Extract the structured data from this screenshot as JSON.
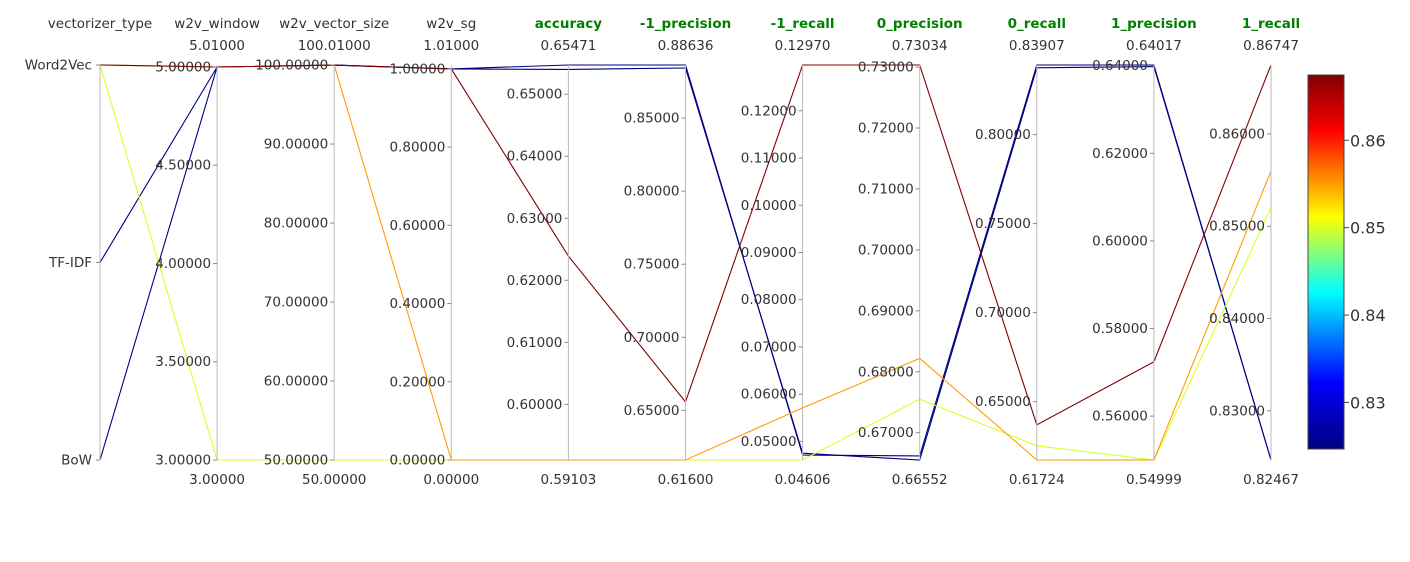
{
  "chart_data": {
    "type": "parallel_coordinates",
    "axes": [
      {
        "name": "vectorizer_type",
        "highlight": false,
        "categorical": true,
        "categories": [
          "Word2Vec",
          "TF-IDF",
          "BoW"
        ],
        "range_top": "",
        "range_bottom": ""
      },
      {
        "name": "w2v_window",
        "highlight": false,
        "range": [
          3.0,
          5.01
        ],
        "ticks": [
          "5.00000",
          "4.50000",
          "4.00000",
          "3.50000",
          "3.00000"
        ],
        "range_top": "5.01000",
        "range_bottom": "3.00000"
      },
      {
        "name": "w2v_vector_size",
        "highlight": false,
        "range": [
          50.0,
          100.01
        ],
        "ticks": [
          "100.00000",
          "90.00000",
          "80.00000",
          "70.00000",
          "60.00000",
          "50.00000"
        ],
        "range_top": "100.01000",
        "range_bottom": "50.00000"
      },
      {
        "name": "w2v_sg",
        "highlight": false,
        "range": [
          0.0,
          1.01
        ],
        "ticks": [
          "1.00000",
          "0.80000",
          "0.60000",
          "0.40000",
          "0.20000",
          "0.00000"
        ],
        "range_top": "1.01000",
        "range_bottom": "0.00000"
      },
      {
        "name": "accuracy",
        "highlight": true,
        "range": [
          0.59103,
          0.65471
        ],
        "ticks": [
          "0.65000",
          "0.64000",
          "0.63000",
          "0.62000",
          "0.61000",
          "0.60000"
        ],
        "range_top": "0.65471",
        "range_bottom": "0.59103"
      },
      {
        "name": "-1_precision",
        "highlight": true,
        "range": [
          0.616,
          0.88636
        ],
        "ticks": [
          "0.85000",
          "0.80000",
          "0.75000",
          "0.70000",
          "0.65000"
        ],
        "range_top": "0.88636",
        "range_bottom": "0.61600"
      },
      {
        "name": "-1_recall",
        "highlight": true,
        "range": [
          0.04606,
          0.1297
        ],
        "ticks": [
          "0.12000",
          "0.11000",
          "0.10000",
          "0.09000",
          "0.08000",
          "0.07000",
          "0.06000",
          "0.05000"
        ],
        "range_top": "0.12970",
        "range_bottom": "0.04606"
      },
      {
        "name": "0_precision",
        "highlight": true,
        "range": [
          0.66552,
          0.73034
        ],
        "ticks": [
          "0.73000",
          "0.72000",
          "0.71000",
          "0.70000",
          "0.69000",
          "0.68000",
          "0.67000"
        ],
        "range_top": "0.73034",
        "range_bottom": "0.66552"
      },
      {
        "name": "0_recall",
        "highlight": true,
        "range": [
          0.61724,
          0.83907
        ],
        "ticks": [
          "0.80000",
          "0.75000",
          "0.70000",
          "0.65000"
        ],
        "range_top": "0.83907",
        "range_bottom": "0.61724"
      },
      {
        "name": "1_precision",
        "highlight": true,
        "range": [
          0.54999,
          0.64017
        ],
        "ticks": [
          "0.64000",
          "0.62000",
          "0.60000",
          "0.58000",
          "0.56000"
        ],
        "range_top": "0.64017",
        "range_bottom": "0.54999"
      },
      {
        "name": "1_recall",
        "highlight": true,
        "range": [
          0.82467,
          0.86747
        ],
        "ticks": [
          "0.86000",
          "0.85000",
          "0.84000",
          "0.83000"
        ],
        "range_top": "0.86747",
        "range_bottom": "0.82467"
      }
    ],
    "series": [
      {
        "color_value": 0.86747,
        "values": [
          0,
          5.0,
          100.0,
          1.0,
          0.6239,
          0.6558,
          0.1297,
          0.73034,
          0.637,
          0.5724,
          0.86747
        ]
      },
      {
        "color_value": 0.855,
        "values": [
          0,
          5.0,
          100.0,
          0.0,
          0.59103,
          0.616,
          0.0571,
          0.6822,
          0.61724,
          0.55001,
          0.856
        ]
      },
      {
        "color_value": 0.85,
        "values": [
          0,
          3.0,
          50.0,
          0.0,
          0.59103,
          0.616,
          0.04606,
          0.6755,
          0.6252,
          0.54999,
          0.852
        ]
      },
      {
        "color_value": 0.82467,
        "values": [
          1,
          5.0,
          100.0,
          1.0,
          0.65471,
          0.88636,
          0.0471,
          0.6662,
          0.83907,
          0.64017,
          0.82467
        ]
      },
      {
        "color_value": 0.82467,
        "values": [
          2,
          5.0,
          100.0,
          1.0,
          0.654,
          0.8843,
          0.0475,
          0.66552,
          0.8375,
          0.6398,
          0.82467
        ]
      }
    ],
    "colorbar": {
      "min": 0.82467,
      "max": 0.86747,
      "ticks": [
        "0.86",
        "0.85",
        "0.84",
        "0.83"
      ],
      "colorscale": [
        "#000080",
        "#0000ff",
        "#00ffff",
        "#ffff00",
        "#ff0000",
        "#800000"
      ]
    }
  }
}
